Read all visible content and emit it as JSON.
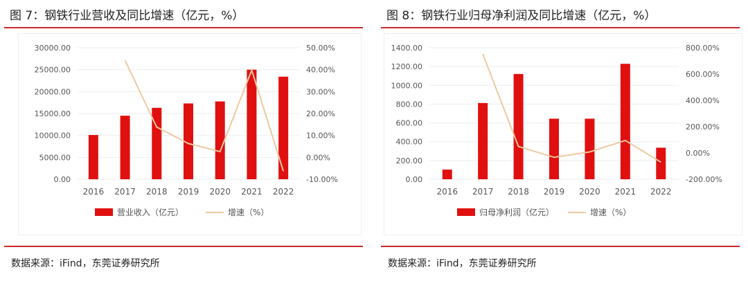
{
  "colors": {
    "bar": "#e01010",
    "line": "#ecc9a0",
    "rule": "#c9262c"
  },
  "chart_data": [
    {
      "type": "bar+line",
      "title": "图 7：钢铁行业营收及同比增速（亿元，%）",
      "categories": [
        "2016",
        "2017",
        "2018",
        "2019",
        "2020",
        "2021",
        "2022"
      ],
      "series": [
        {
          "name": "营业收入（亿元）",
          "type": "bar",
          "axis": "left",
          "values": [
            10100,
            14500,
            16300,
            17300,
            17750,
            25000,
            23400
          ]
        },
        {
          "name": "增速（%）",
          "type": "line",
          "axis": "right",
          "values": [
            null,
            44.2,
            13.8,
            6.3,
            2.6,
            39.8,
            -6.3
          ]
        }
      ],
      "ylim_left": [
        0,
        30000
      ],
      "yticks_left": [
        "0.00",
        "5000.00",
        "10000.00",
        "15000.00",
        "20000.00",
        "25000.00",
        "30000.00"
      ],
      "ylim_right": [
        -10,
        50
      ],
      "yticks_right": [
        "-10.00%",
        "0.00%",
        "10.00%",
        "20.00%",
        "30.00%",
        "40.00%",
        "50.00%"
      ],
      "grid": true,
      "legend": "bottom",
      "source": "数据来源：iFind，东莞证券研究所"
    },
    {
      "type": "bar+line",
      "title": "图 8：钢铁行业归母净利润及同比增速（亿元，%）",
      "categories": [
        "2016",
        "2017",
        "2018",
        "2019",
        "2020",
        "2021",
        "2022"
      ],
      "series": [
        {
          "name": "归母净利润（亿元）",
          "type": "bar",
          "axis": "left",
          "values": [
            103,
            812,
            1121,
            645,
            645,
            1229,
            336
          ]
        },
        {
          "name": "增速（%）",
          "type": "line",
          "axis": "right",
          "values": [
            null,
            752,
            49,
            -33,
            8,
            95,
            -70
          ]
        }
      ],
      "ylim_left": [
        0,
        1400
      ],
      "yticks_left": [
        "0.00",
        "200.00",
        "400.00",
        "600.00",
        "800.00",
        "1000.00",
        "1200.00",
        "1400.00"
      ],
      "ylim_right": [
        -200,
        800
      ],
      "yticks_right": [
        "-200.00%",
        "0.00%",
        "200.00%",
        "400.00%",
        "600.00%",
        "800.00%"
      ],
      "grid": true,
      "legend": "bottom",
      "source": "数据来源：iFind，东莞证券研究所"
    }
  ]
}
